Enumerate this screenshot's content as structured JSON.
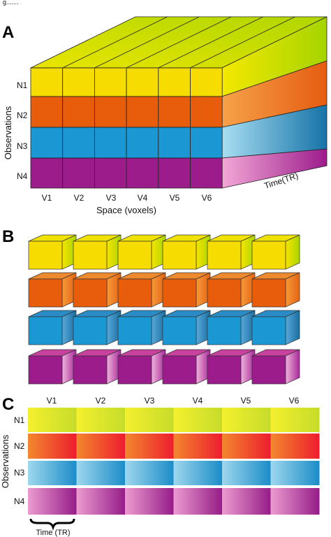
{
  "top_fragment": "g.......",
  "panels": {
    "A": {
      "letter": "A",
      "y_axis_label": "Observations",
      "x_axis_label": "Space (voxels)",
      "depth_label": "Time(TR)",
      "rows": [
        "N1",
        "N2",
        "N3",
        "N4"
      ],
      "cols": [
        "V1",
        "V2",
        "V3",
        "V4",
        "V5",
        "V6"
      ]
    },
    "B": {
      "letter": "B"
    },
    "C": {
      "letter": "C",
      "y_axis_label": "Observations",
      "cols": [
        "V1",
        "V2",
        "V3",
        "V4",
        "V5",
        "V6"
      ],
      "rows": [
        "N1",
        "N2",
        "N3",
        "N4"
      ],
      "brace_label": "Time (TR)"
    }
  },
  "colors": {
    "N1": {
      "front": "#f6dc00",
      "side": "#b6d400",
      "light": "#f4ef30"
    },
    "N2": {
      "front": "#e85d0c",
      "side": "#f08a2a",
      "light": "#f28e2f",
      "end": "#ee1c2e"
    },
    "N3": {
      "front": "#1b97d3",
      "side": "#2b84b8",
      "light": "#9bd6ee"
    },
    "N4": {
      "front": "#9c1c8c",
      "side": "#c1409f",
      "light": "#e99acb"
    }
  }
}
